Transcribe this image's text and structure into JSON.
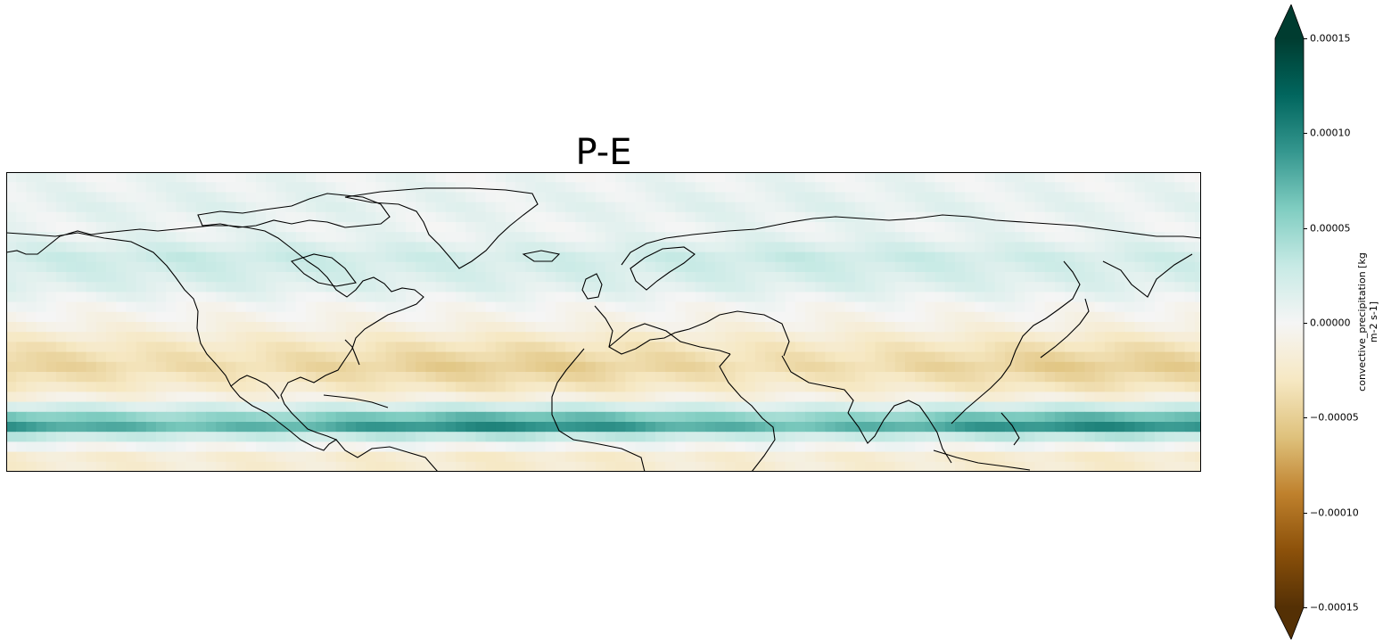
{
  "title": "P-E",
  "colorbar": {
    "label_line1": "convective_precipitation [kg",
    "label_line2": "m-2 s-1]",
    "ticks": [
      "0.00015",
      "0.00010",
      "0.00005",
      "0.00000",
      "−0.00005",
      "−0.00010",
      "−0.00015"
    ],
    "tick_values": [
      0.00015,
      0.0001,
      5e-05,
      0.0,
      -5e-05,
      -0.0001,
      -0.00015
    ],
    "range": [
      -0.00015,
      0.00015
    ],
    "extend": "both",
    "colormap": "BrBG",
    "colors": [
      "#543005",
      "#8c510a",
      "#bf812d",
      "#dfc27d",
      "#f6e8c3",
      "#f5f5f5",
      "#c7eae5",
      "#80cdc1",
      "#35978f",
      "#01665e",
      "#003c30"
    ]
  },
  "map": {
    "projection": "PlateCarree",
    "coastlines": true,
    "lat_range": [
      -10,
      80
    ],
    "lon_range": [
      -180,
      180
    ],
    "bands": [
      {
        "lat": 78,
        "value": 5e-06
      },
      {
        "lat": 70,
        "value": 1e-05
      },
      {
        "lat": 62,
        "value": 5e-06
      },
      {
        "lat": 54,
        "value": 2.5e-05
      },
      {
        "lat": 46,
        "value": 1.5e-05
      },
      {
        "lat": 40,
        "value": 0.0
      },
      {
        "lat": 34,
        "value": -1e-05
      },
      {
        "lat": 28,
        "value": -3e-05
      },
      {
        "lat": 22,
        "value": -4.5e-05
      },
      {
        "lat": 16,
        "value": -3e-05
      },
      {
        "lat": 12,
        "value": -1e-05
      },
      {
        "lat": 8,
        "value": 4e-05
      },
      {
        "lat": 4,
        "value": 9e-05
      },
      {
        "lat": 0,
        "value": 2e-05
      },
      {
        "lat": -5,
        "value": -2e-05
      }
    ]
  }
}
